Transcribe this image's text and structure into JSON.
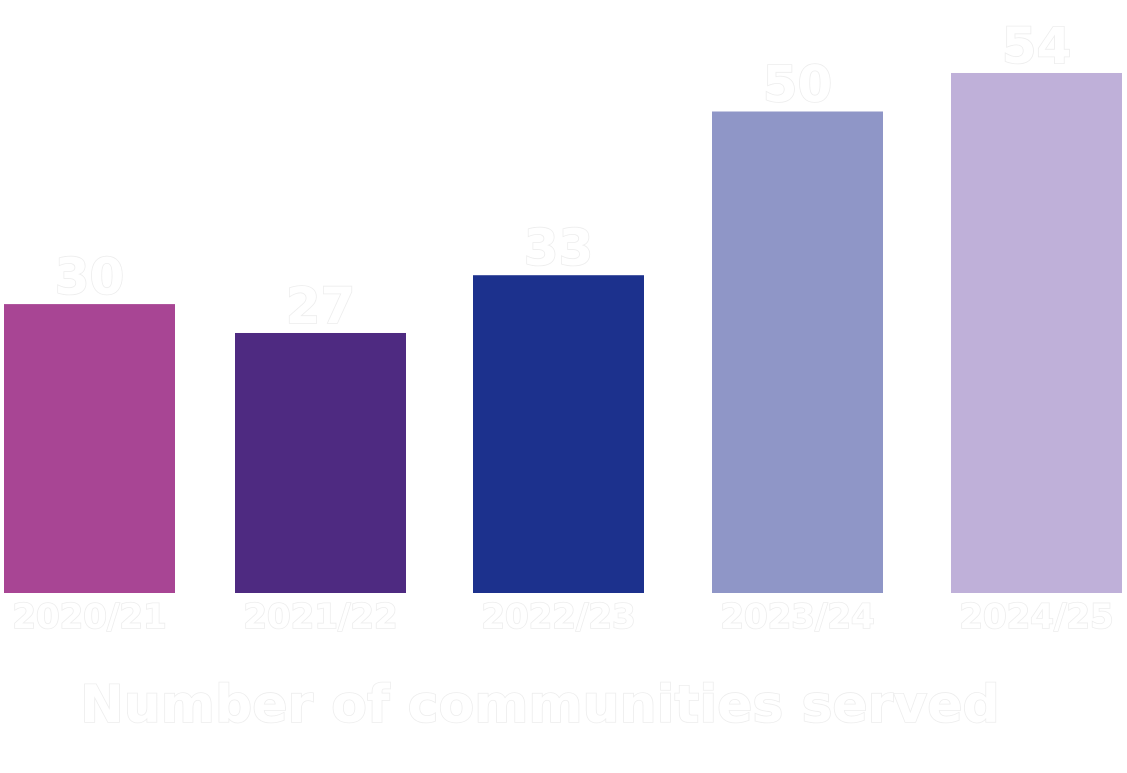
{
  "chart_data": {
    "type": "bar",
    "categories": [
      "2020/21",
      "2021/22",
      "2022/23",
      "2023/24",
      "2024/25"
    ],
    "values": [
      30,
      27,
      33,
      50,
      54
    ],
    "colors": [
      "#a84594",
      "#4e2a81",
      "#1c318d",
      "#8f96c7",
      "#bfb0d9"
    ],
    "xlabel": "Number of communities served",
    "ylabel": "",
    "title": "",
    "ylim": [
      0,
      54
    ],
    "grid": false,
    "legend": "none"
  }
}
